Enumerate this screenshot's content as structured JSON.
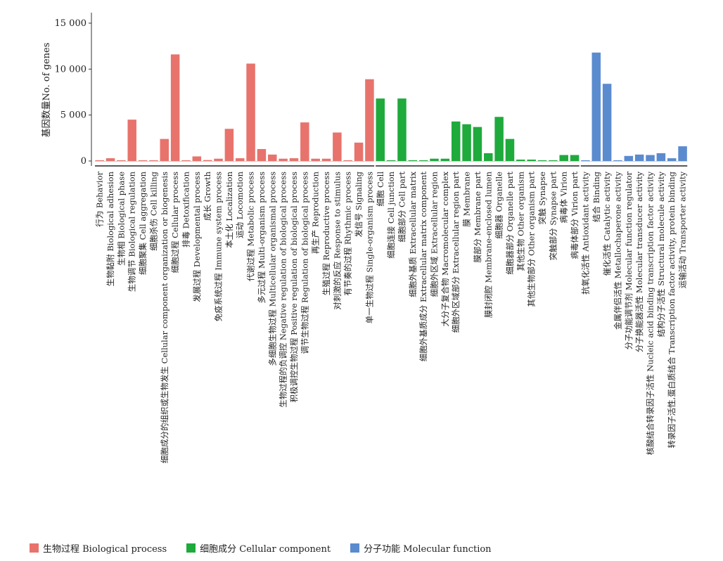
{
  "chart_data": {
    "type": "bar",
    "ylabel": "基因数量No. of genes",
    "ylim": [
      0,
      16000
    ],
    "yticks": [
      0,
      5000,
      10000,
      15000
    ],
    "ytick_labels": [
      "0",
      "5 000",
      "10 000",
      "15 000"
    ],
    "legend_position": "bottom-left",
    "groups": [
      {
        "name": "生物过程 Biological process",
        "color": "#E8736C",
        "categories": [
          "行为 Behavior",
          "生物黏附 Biological adhesion",
          "生物相 Biological phase",
          "生物调节 Biological regulation",
          "细胞聚集 Cell aggregation",
          "细胞杀伤 Cell killing",
          "细胞成分的组织或生物发生 Cellular component organization or biogenesis",
          "细胞过程 Cellular process",
          "排毒 Detoxification",
          "发展过程 Developmental process",
          "成长 Growth",
          "免疫系统过程 Immune system process",
          "本土化 Localization",
          "运动 Locomotion",
          "代谢过程 Metabolic process",
          "多元过程 Multi-organism process",
          "多细胞生物过程 Multicellular organismal process",
          "生物过程的负调控 Negative regulation of biological process",
          "积极调控生物过程 Positive regulation of biological process",
          "调节生物过程 Regulation of biological process",
          "再生产 Reproduction",
          "生殖过程 Reproductive process",
          "对刺激的反应 Response to stimulus",
          "有节奏的过程 Rhythmic process",
          "发信号 Signaling",
          "单一生物过程 Single-organism process"
        ],
        "values": [
          20,
          300,
          20,
          4500,
          10,
          20,
          2400,
          11600,
          20,
          500,
          100,
          250,
          3500,
          300,
          10600,
          1300,
          700,
          250,
          300,
          4200,
          250,
          250,
          3100,
          20,
          2000,
          8900
        ]
      },
      {
        "name": "细胞成分 Cellular component",
        "color": "#1FAA3C",
        "categories": [
          "细胞 Cell",
          "细胞连接 Cell junction",
          "细胞部分 Cell part",
          "细胞外基质 Extracellular matrix",
          "细胞外基质成分 Extracellular matrix component",
          "细胞外区域 Extracellular region",
          "大分子复合物 Macromolecular complex",
          "细胞外区域部分 Extracellular region part",
          "膜 Membrane",
          "膜部分 Membrane part",
          "膜封闭腔 Membrane-enclosed lumen",
          "细胞器 Organelle",
          "细胞器部分 Organelle part",
          "其他生物 Other organism",
          "其他生物部分 Other organism part",
          "突触 Synapse",
          "突触部分 Synapse part",
          "病毒体 Virion",
          "病毒体部分 Virion part"
        ],
        "values": [
          6800,
          20,
          6800,
          80,
          20,
          250,
          250,
          4300,
          4000,
          3700,
          850,
          4800,
          2400,
          150,
          150,
          20,
          20,
          650,
          650
        ]
      },
      {
        "name": "分子功能 Molecular function",
        "color": "#5B8BCF",
        "categories": [
          "抗氧化活性 Antioxidant activity",
          "结合 Binding",
          "催化活性 Catalytic activity",
          "金属伴侣活性 Metallochaperone activity",
          "分子功能调节剂 Molecular function regulator",
          "分子换能器活性 Molecular transducer activity",
          "核酸结合转录因子活性 Nucleic acid binding transcription factor activity",
          "结构分子活性 Structural molecule activity",
          "转录因子活性,蛋白质结合 Transcription factor activity, protein binding",
          "运输活动 Transporter activity"
        ],
        "values": [
          60,
          11800,
          8400,
          20,
          550,
          700,
          650,
          850,
          300,
          1600
        ]
      }
    ]
  }
}
